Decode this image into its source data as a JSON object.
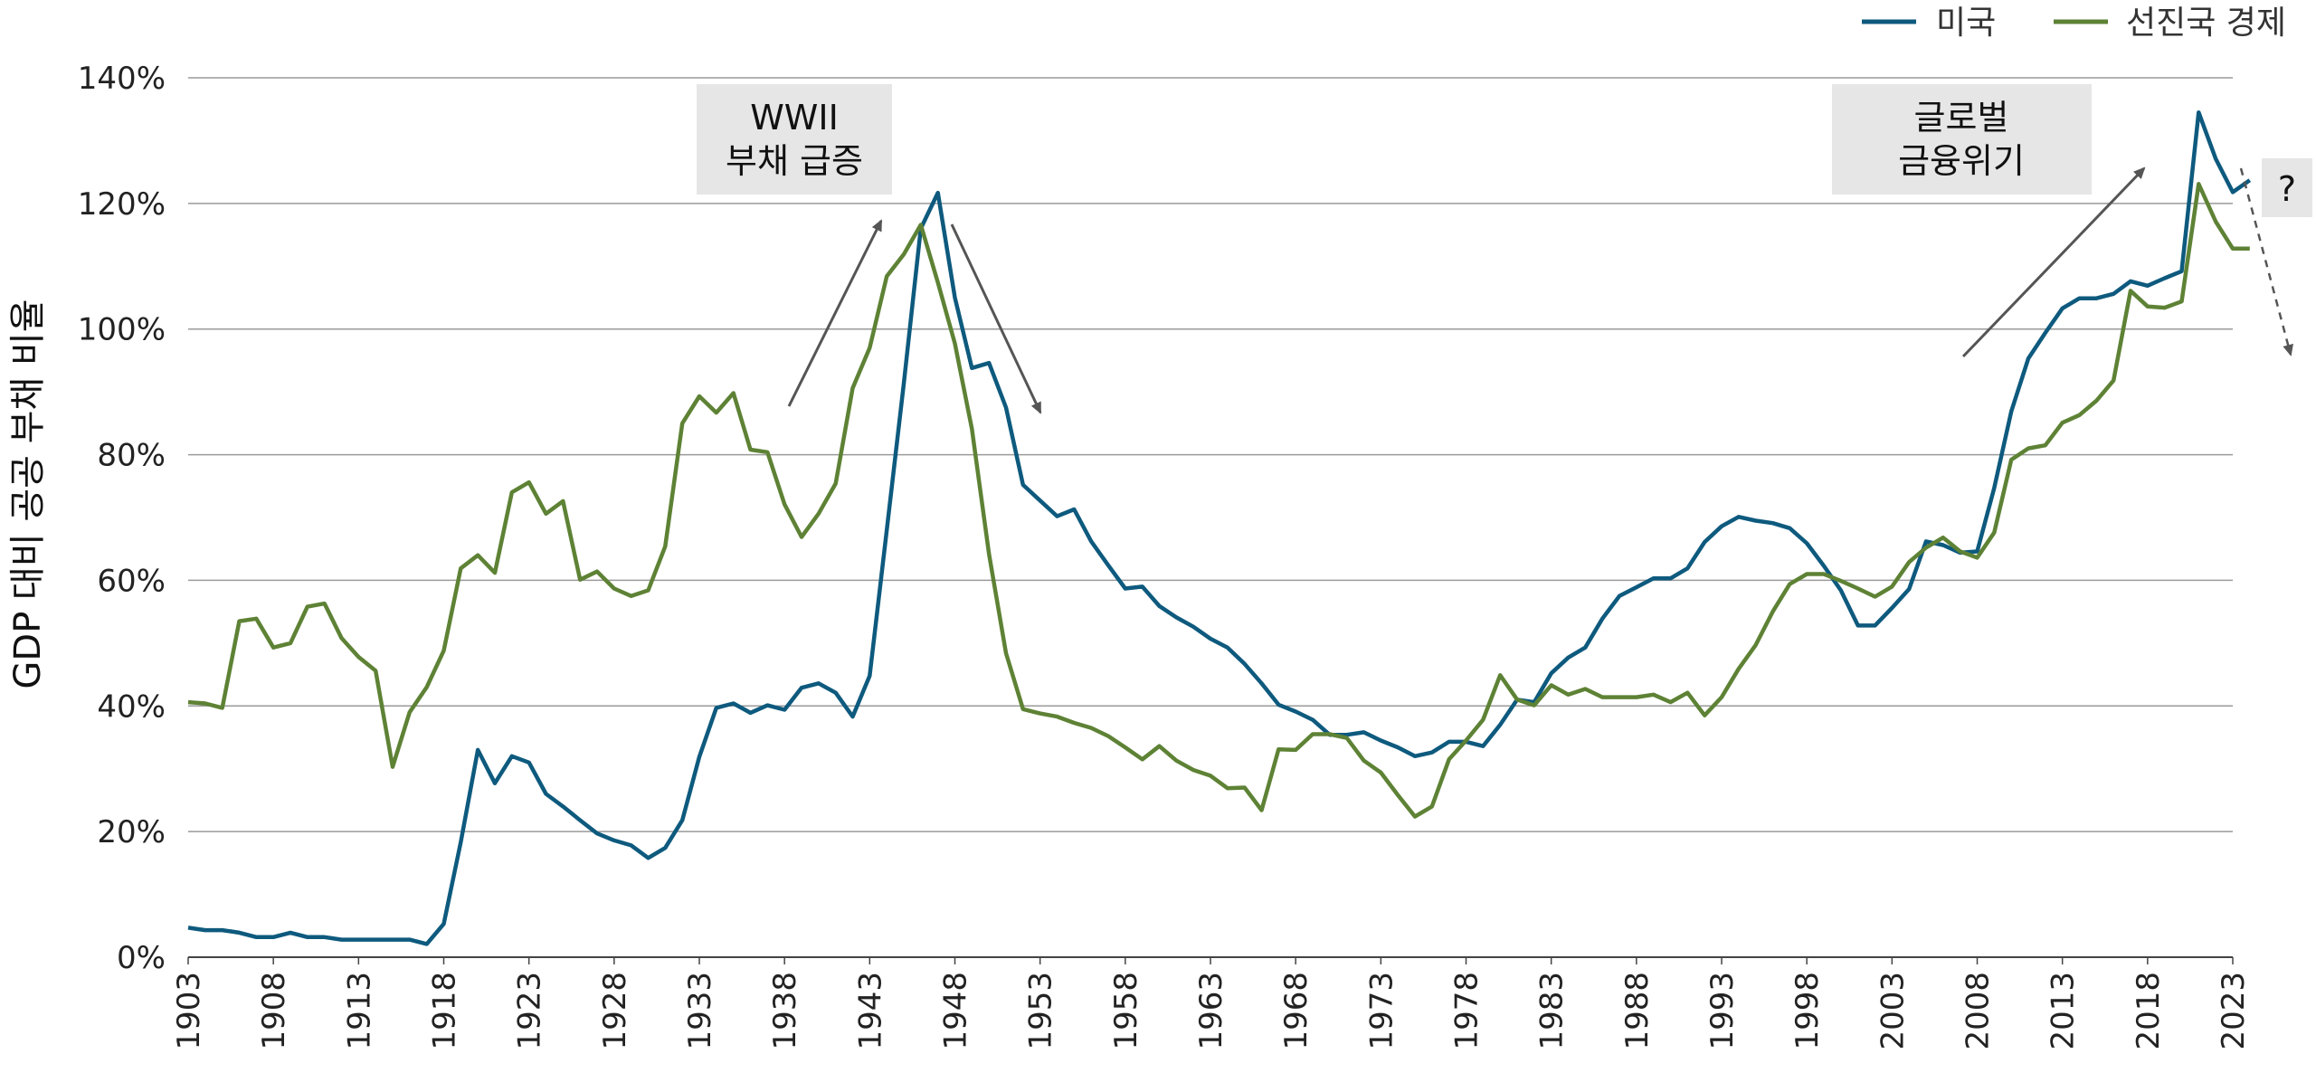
{
  "chart_data": {
    "type": "line",
    "title": "",
    "xlabel": "",
    "ylabel": "GDP 대비 공공 부채 비율",
    "xlim": [
      1903,
      2023
    ],
    "ylim": [
      0,
      140
    ],
    "y_ticks": [
      0,
      20,
      40,
      60,
      80,
      100,
      120,
      140
    ],
    "y_tick_labels": [
      "0%",
      "20%",
      "40%",
      "60%",
      "80%",
      "100%",
      "120%",
      "140%"
    ],
    "x_ticks": [
      1903,
      1908,
      1913,
      1918,
      1923,
      1928,
      1933,
      1938,
      1943,
      1948,
      1953,
      1958,
      1963,
      1968,
      1973,
      1978,
      1983,
      1988,
      1993,
      1998,
      2003,
      2008,
      2013,
      2018,
      2023
    ],
    "grid": "horizontal",
    "legend_position": "top-right",
    "series": [
      {
        "name": "미국",
        "color": "#0e5a7e",
        "points": [
          [
            1903,
            4.7
          ],
          [
            1904,
            4.3
          ],
          [
            1905,
            4.3
          ],
          [
            1906,
            3.9
          ],
          [
            1907,
            3.2
          ],
          [
            1908,
            3.2
          ],
          [
            1909,
            3.9
          ],
          [
            1910,
            3.2
          ],
          [
            1911,
            3.2
          ],
          [
            1912,
            2.8
          ],
          [
            1913,
            2.8
          ],
          [
            1914,
            2.8
          ],
          [
            1915,
            2.8
          ],
          [
            1916,
            2.8
          ],
          [
            1917,
            2.1
          ],
          [
            1918,
            5.3
          ],
          [
            1919,
            18.3
          ],
          [
            1920,
            33.0
          ],
          [
            1921,
            27.7
          ],
          [
            1922,
            32.0
          ],
          [
            1923,
            31.0
          ],
          [
            1924,
            26.0
          ],
          [
            1925,
            24.0
          ],
          [
            1926,
            21.8
          ],
          [
            1927,
            19.7
          ],
          [
            1928,
            18.6
          ],
          [
            1929,
            17.8
          ],
          [
            1930,
            15.8
          ],
          [
            1931,
            17.4
          ],
          [
            1932,
            21.8
          ],
          [
            1933,
            31.9
          ],
          [
            1934,
            39.7
          ],
          [
            1935,
            40.4
          ],
          [
            1936,
            38.9
          ],
          [
            1937,
            40.1
          ],
          [
            1938,
            39.4
          ],
          [
            1939,
            42.9
          ],
          [
            1940,
            43.6
          ],
          [
            1941,
            42.1
          ],
          [
            1942,
            38.3
          ],
          [
            1943,
            44.8
          ],
          [
            1944,
            68.0
          ],
          [
            1945,
            91.3
          ],
          [
            1946,
            116.0
          ],
          [
            1947,
            121.7
          ],
          [
            1948,
            105.0
          ],
          [
            1949,
            93.8
          ],
          [
            1950,
            94.6
          ],
          [
            1951,
            87.5
          ],
          [
            1952,
            75.2
          ],
          [
            1953,
            72.7
          ],
          [
            1954,
            70.2
          ],
          [
            1955,
            71.3
          ],
          [
            1956,
            66.2
          ],
          [
            1957,
            62.4
          ],
          [
            1958,
            58.7
          ],
          [
            1959,
            59.0
          ],
          [
            1960,
            55.9
          ],
          [
            1961,
            54.1
          ],
          [
            1962,
            52.6
          ],
          [
            1963,
            50.7
          ],
          [
            1964,
            49.3
          ],
          [
            1965,
            46.7
          ],
          [
            1966,
            43.6
          ],
          [
            1967,
            40.2
          ],
          [
            1968,
            39.1
          ],
          [
            1969,
            37.8
          ],
          [
            1970,
            35.4
          ],
          [
            1971,
            35.4
          ],
          [
            1972,
            35.8
          ],
          [
            1973,
            34.5
          ],
          [
            1974,
            33.4
          ],
          [
            1975,
            32.0
          ],
          [
            1976,
            32.6
          ],
          [
            1977,
            34.3
          ],
          [
            1978,
            34.3
          ],
          [
            1979,
            33.6
          ],
          [
            1980,
            37.0
          ],
          [
            1981,
            41.0
          ],
          [
            1982,
            40.6
          ],
          [
            1983,
            45.2
          ],
          [
            1984,
            47.7
          ],
          [
            1985,
            49.3
          ],
          [
            1986,
            53.9
          ],
          [
            1987,
            57.5
          ],
          [
            1988,
            58.9
          ],
          [
            1989,
            60.3
          ],
          [
            1990,
            60.3
          ],
          [
            1991,
            61.9
          ],
          [
            1992,
            66.1
          ],
          [
            1993,
            68.6
          ],
          [
            1994,
            70.1
          ],
          [
            1995,
            69.5
          ],
          [
            1996,
            69.1
          ],
          [
            1997,
            68.3
          ],
          [
            1998,
            65.9
          ],
          [
            1999,
            62.3
          ],
          [
            2000,
            58.4
          ],
          [
            2001,
            52.8
          ],
          [
            2002,
            52.8
          ],
          [
            2003,
            55.6
          ],
          [
            2004,
            58.6
          ],
          [
            2005,
            66.2
          ],
          [
            2006,
            65.6
          ],
          [
            2007,
            64.4
          ],
          [
            2008,
            64.6
          ],
          [
            2009,
            74.7
          ],
          [
            2010,
            86.9
          ],
          [
            2011,
            95.3
          ],
          [
            2012,
            99.4
          ],
          [
            2013,
            103.3
          ],
          [
            2014,
            104.9
          ],
          [
            2015,
            104.9
          ],
          [
            2016,
            105.6
          ],
          [
            2017,
            107.6
          ],
          [
            2018,
            106.9
          ],
          [
            2019,
            108.1
          ],
          [
            2020,
            109.2
          ],
          [
            2021,
            134.5
          ],
          [
            2022,
            127.1
          ],
          [
            2023,
            121.8
          ],
          [
            2024,
            123.7
          ]
        ]
      },
      {
        "name": "선진국 경제",
        "color": "#5e8235",
        "points": [
          [
            1903,
            40.6
          ],
          [
            1904,
            40.4
          ],
          [
            1905,
            39.7
          ],
          [
            1906,
            53.5
          ],
          [
            1907,
            53.9
          ],
          [
            1908,
            49.3
          ],
          [
            1909,
            50.0
          ],
          [
            1910,
            55.8
          ],
          [
            1911,
            56.3
          ],
          [
            1912,
            50.8
          ],
          [
            1913,
            47.8
          ],
          [
            1914,
            45.6
          ],
          [
            1915,
            30.3
          ],
          [
            1916,
            39.0
          ],
          [
            1917,
            43.0
          ],
          [
            1918,
            48.8
          ],
          [
            1919,
            61.9
          ],
          [
            1920,
            64.0
          ],
          [
            1921,
            61.2
          ],
          [
            1922,
            74.0
          ],
          [
            1923,
            75.6
          ],
          [
            1924,
            70.6
          ],
          [
            1925,
            72.6
          ],
          [
            1926,
            60.1
          ],
          [
            1927,
            61.4
          ],
          [
            1928,
            58.7
          ],
          [
            1929,
            57.5
          ],
          [
            1930,
            58.4
          ],
          [
            1931,
            65.4
          ],
          [
            1932,
            85.0
          ],
          [
            1933,
            89.3
          ],
          [
            1934,
            86.7
          ],
          [
            1935,
            89.8
          ],
          [
            1936,
            80.8
          ],
          [
            1937,
            80.4
          ],
          [
            1938,
            72.1
          ],
          [
            1939,
            66.9
          ],
          [
            1940,
            70.6
          ],
          [
            1941,
            75.4
          ],
          [
            1942,
            90.6
          ],
          [
            1943,
            97.0
          ],
          [
            1944,
            108.4
          ],
          [
            1945,
            111.9
          ],
          [
            1946,
            116.6
          ],
          [
            1947,
            107.4
          ],
          [
            1948,
            97.7
          ],
          [
            1949,
            84.1
          ],
          [
            1950,
            64.2
          ],
          [
            1951,
            48.4
          ],
          [
            1952,
            39.5
          ],
          [
            1953,
            38.8
          ],
          [
            1954,
            38.3
          ],
          [
            1955,
            37.3
          ],
          [
            1956,
            36.5
          ],
          [
            1957,
            35.2
          ],
          [
            1958,
            33.4
          ],
          [
            1959,
            31.5
          ],
          [
            1960,
            33.6
          ],
          [
            1961,
            31.3
          ],
          [
            1962,
            29.8
          ],
          [
            1963,
            28.9
          ],
          [
            1964,
            26.9
          ],
          [
            1965,
            27.0
          ],
          [
            1966,
            23.4
          ],
          [
            1967,
            33.1
          ],
          [
            1968,
            33.0
          ],
          [
            1969,
            35.5
          ],
          [
            1970,
            35.5
          ],
          [
            1971,
            34.9
          ],
          [
            1972,
            31.3
          ],
          [
            1973,
            29.4
          ],
          [
            1974,
            25.8
          ],
          [
            1975,
            22.4
          ],
          [
            1976,
            24.0
          ],
          [
            1977,
            31.5
          ],
          [
            1978,
            34.5
          ],
          [
            1979,
            37.8
          ],
          [
            1980,
            44.9
          ],
          [
            1981,
            41.0
          ],
          [
            1982,
            40.1
          ],
          [
            1983,
            43.3
          ],
          [
            1984,
            41.8
          ],
          [
            1985,
            42.7
          ],
          [
            1986,
            41.4
          ],
          [
            1987,
            41.4
          ],
          [
            1988,
            41.4
          ],
          [
            1989,
            41.8
          ],
          [
            1990,
            40.6
          ],
          [
            1991,
            42.1
          ],
          [
            1992,
            38.5
          ],
          [
            1993,
            41.4
          ],
          [
            1994,
            45.9
          ],
          [
            1995,
            49.7
          ],
          [
            1996,
            55.0
          ],
          [
            1997,
            59.4
          ],
          [
            1998,
            61.0
          ],
          [
            1999,
            61.0
          ],
          [
            2000,
            59.9
          ],
          [
            2001,
            58.7
          ],
          [
            2002,
            57.4
          ],
          [
            2003,
            59.0
          ],
          [
            2004,
            62.9
          ],
          [
            2005,
            65.2
          ],
          [
            2006,
            66.8
          ],
          [
            2007,
            64.6
          ],
          [
            2008,
            63.6
          ],
          [
            2009,
            67.6
          ],
          [
            2010,
            79.2
          ],
          [
            2011,
            81.0
          ],
          [
            2012,
            81.5
          ],
          [
            2013,
            85.1
          ],
          [
            2014,
            86.3
          ],
          [
            2015,
            88.6
          ],
          [
            2016,
            91.8
          ],
          [
            2017,
            106.1
          ],
          [
            2018,
            103.6
          ],
          [
            2019,
            103.4
          ],
          [
            2020,
            104.4
          ],
          [
            2021,
            123.1
          ],
          [
            2022,
            117.1
          ],
          [
            2023,
            112.8
          ],
          [
            2024,
            112.8
          ]
        ]
      }
    ],
    "annotations": [
      {
        "label_lines": [
          "WWII",
          "부채 급증"
        ]
      },
      {
        "label_lines": [
          "글로벌",
          "금융위기"
        ]
      },
      {
        "label": "?"
      }
    ],
    "legend": [
      {
        "label": "미국",
        "color": "#0e5a7e"
      },
      {
        "label": "선진국 경제",
        "color": "#5e8235"
      }
    ]
  }
}
